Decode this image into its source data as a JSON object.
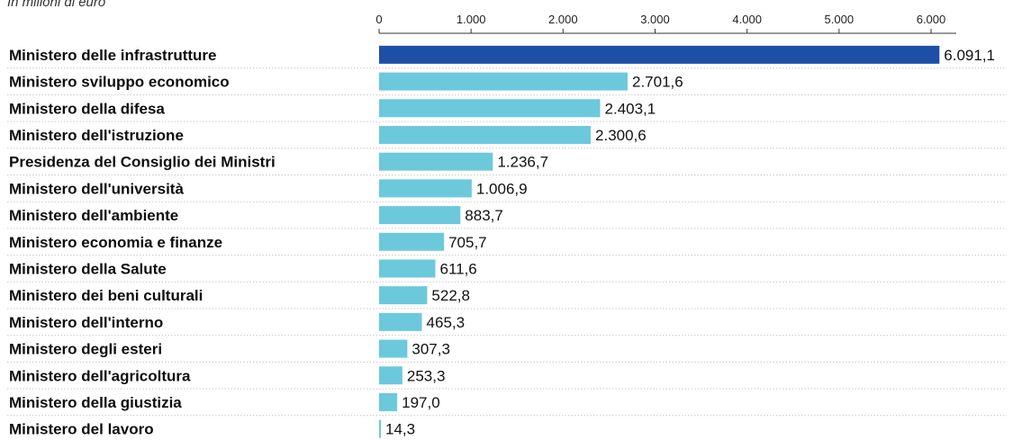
{
  "subtitle": "In milioni di euro",
  "chart_data": {
    "type": "bar",
    "orientation": "horizontal",
    "categories": [
      "Ministero delle infrastrutture",
      "Ministero sviluppo economico",
      "Ministero della difesa",
      "Ministero dell'istruzione",
      "Presidenza del Consiglio dei Ministri",
      "Ministero dell'università",
      "Ministero dell'ambiente",
      "Ministero economia e finanze",
      "Ministero della Salute",
      "Ministero dei beni culturali",
      "Ministero dell'interno",
      "Ministero degli esteri",
      "Ministero dell'agricoltura",
      "Ministero della giustizia",
      "Ministero del lavoro"
    ],
    "values": [
      6091.1,
      2701.6,
      2403.1,
      2300.6,
      1236.7,
      1006.9,
      883.7,
      705.7,
      611.6,
      522.8,
      465.3,
      307.3,
      253.3,
      197.0,
      14.3
    ],
    "value_labels": [
      "6.091,1",
      "2.701,6",
      "2.403,1",
      "2.300,6",
      "1.236,7",
      "1.006,9",
      "883,7",
      "705,7",
      "611,6",
      "522,8",
      "465,3",
      "307,3",
      "253,3",
      "197,0",
      "14,3"
    ],
    "x_ticks": [
      0,
      1000,
      2000,
      3000,
      4000,
      5000,
      6000
    ],
    "x_tick_labels": [
      "0",
      "1.000",
      "2.000",
      "3.000",
      "4.000",
      "5.000",
      "6.000"
    ],
    "xlim": [
      0,
      6091.1
    ],
    "axis_position": "top",
    "colors": {
      "highlight": "#1d4fa6",
      "bar": "#6cc9dc",
      "grid": "#c9c9c9",
      "axis": "#333333"
    }
  }
}
